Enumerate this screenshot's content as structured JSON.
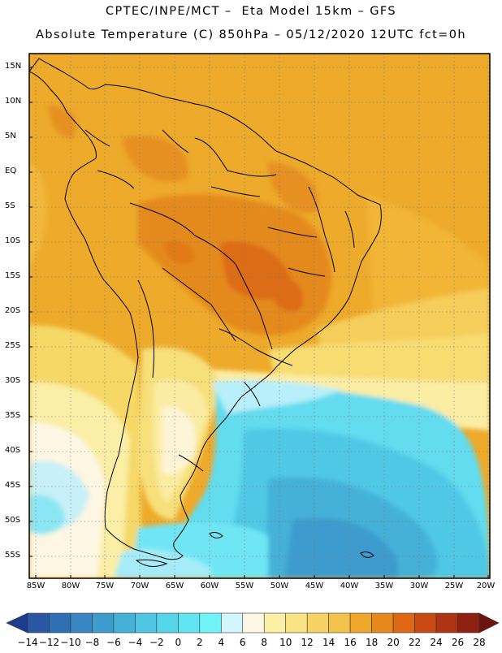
{
  "title": {
    "line1": "CPTEC/INPE/MCT –  Eta Model 15km – GFS",
    "line2": "Absolute Temperature (C) 850hPa – 05/12/2020 12UTC fct=0h"
  },
  "map": {
    "lat_labels": [
      "15N",
      "10N",
      "5N",
      "EQ",
      "5S",
      "10S",
      "15S",
      "20S",
      "25S",
      "30S",
      "35S",
      "40S",
      "45S",
      "50S",
      "55S"
    ],
    "lon_labels": [
      "85W",
      "80W",
      "75W",
      "70W",
      "65W",
      "60W",
      "55W",
      "50W",
      "45W",
      "40W",
      "35W",
      "30W",
      "25W",
      "20W"
    ],
    "lon_range": [
      -86,
      -19
    ],
    "lat_range": [
      17,
      -58
    ]
  },
  "colorbar": {
    "labels": [
      "-14",
      "-12",
      "-10",
      "-8",
      "-6",
      "-4",
      "-2",
      "0",
      "2",
      "4",
      "6",
      "8",
      "10",
      "12",
      "14",
      "16",
      "18",
      "20",
      "22",
      "24",
      "26",
      "28"
    ],
    "colors": [
      "#1e3c8c",
      "#2a57a2",
      "#2f6fb4",
      "#3887c2",
      "#3e9ccd",
      "#45b1d8",
      "#4ec5e2",
      "#56d5ea",
      "#62e5f2",
      "#70f4f8",
      "#d2f6fb",
      "#fdf8e6",
      "#fbf0a5",
      "#f9e383",
      "#f5d262",
      "#f2c24a",
      "#eea72a",
      "#e6891d",
      "#dd6712",
      "#c84a10",
      "#ae3312",
      "#8f2110",
      "#6d1410"
    ]
  },
  "colors": {
    "warm_bg": "#eeaa2b",
    "hot": "#e48a1e",
    "very_hot": "#dc6c14",
    "cold_ocean": "#62dcee",
    "cold_mid": "#4fbce0",
    "cold_deep": "#3b94c8"
  }
}
